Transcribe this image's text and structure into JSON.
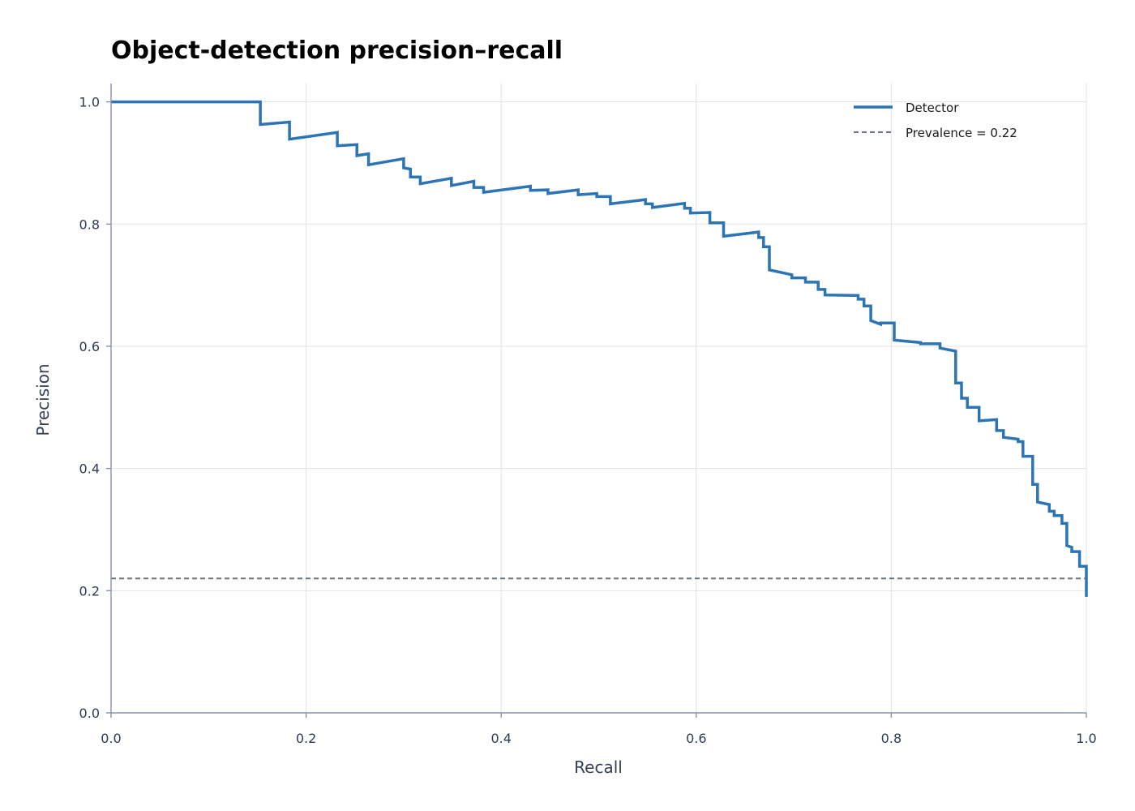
{
  "chart_data": {
    "type": "line",
    "title": "Object-detection precision–recall",
    "xlabel": "Recall",
    "ylabel": "Precision",
    "xlim": [
      0,
      1
    ],
    "ylim": [
      0,
      1.03
    ],
    "x_ticks": [
      "0.0",
      "0.2",
      "0.4",
      "0.6",
      "0.8",
      "1.0"
    ],
    "y_ticks": [
      "0.0",
      "0.2",
      "0.4",
      "0.6",
      "0.8",
      "1.0"
    ],
    "grid": true,
    "legend_position": "top-right",
    "series": [
      {
        "name": "Detector",
        "color": "#2c74b3",
        "style": "step",
        "x": [
          0.0,
          0.153,
          0.153,
          0.183,
          0.183,
          0.232,
          0.232,
          0.252,
          0.252,
          0.264,
          0.264,
          0.3,
          0.3,
          0.307,
          0.307,
          0.317,
          0.317,
          0.349,
          0.349,
          0.372,
          0.372,
          0.382,
          0.382,
          0.43,
          0.43,
          0.448,
          0.448,
          0.479,
          0.479,
          0.498,
          0.498,
          0.512,
          0.512,
          0.548,
          0.548,
          0.555,
          0.555,
          0.588,
          0.588,
          0.594,
          0.594,
          0.614,
          0.614,
          0.628,
          0.628,
          0.664,
          0.664,
          0.669,
          0.669,
          0.675,
          0.675,
          0.698,
          0.698,
          0.712,
          0.712,
          0.725,
          0.725,
          0.732,
          0.732,
          0.766,
          0.766,
          0.772,
          0.772,
          0.779,
          0.779,
          0.789,
          0.789,
          0.803,
          0.803,
          0.83,
          0.83,
          0.85,
          0.85,
          0.866,
          0.866,
          0.872,
          0.872,
          0.878,
          0.878,
          0.89,
          0.89,
          0.908,
          0.908,
          0.915,
          0.915,
          0.93,
          0.93,
          0.935,
          0.935,
          0.945,
          0.945,
          0.95,
          0.95,
          0.962,
          0.962,
          0.967,
          0.967,
          0.975,
          0.975,
          0.98,
          0.98,
          0.985,
          0.985,
          0.993,
          0.993,
          0.998,
          0.998,
          1.0,
          1.0
        ],
        "y": [
          1.0,
          1.0,
          0.963,
          0.967,
          0.939,
          0.95,
          0.928,
          0.93,
          0.912,
          0.915,
          0.897,
          0.907,
          0.892,
          0.89,
          0.877,
          0.877,
          0.866,
          0.875,
          0.863,
          0.87,
          0.86,
          0.86,
          0.852,
          0.862,
          0.855,
          0.856,
          0.85,
          0.856,
          0.848,
          0.85,
          0.845,
          0.845,
          0.833,
          0.84,
          0.833,
          0.833,
          0.827,
          0.834,
          0.826,
          0.826,
          0.818,
          0.819,
          0.802,
          0.802,
          0.78,
          0.787,
          0.778,
          0.778,
          0.763,
          0.763,
          0.725,
          0.717,
          0.712,
          0.712,
          0.705,
          0.705,
          0.693,
          0.693,
          0.684,
          0.683,
          0.677,
          0.677,
          0.666,
          0.666,
          0.642,
          0.636,
          0.638,
          0.638,
          0.61,
          0.606,
          0.604,
          0.604,
          0.597,
          0.592,
          0.54,
          0.54,
          0.515,
          0.515,
          0.5,
          0.5,
          0.478,
          0.48,
          0.462,
          0.462,
          0.451,
          0.448,
          0.444,
          0.444,
          0.42,
          0.42,
          0.374,
          0.374,
          0.345,
          0.341,
          0.33,
          0.33,
          0.323,
          0.323,
          0.31,
          0.31,
          0.274,
          0.271,
          0.264,
          0.264,
          0.24,
          0.24,
          0.24,
          0.24,
          0.19
        ]
      },
      {
        "name": "Prevalence = 0.22",
        "color": "#6b7280",
        "style": "dashed",
        "x": [
          0,
          1
        ],
        "y": [
          0.22,
          0.22
        ]
      }
    ]
  }
}
